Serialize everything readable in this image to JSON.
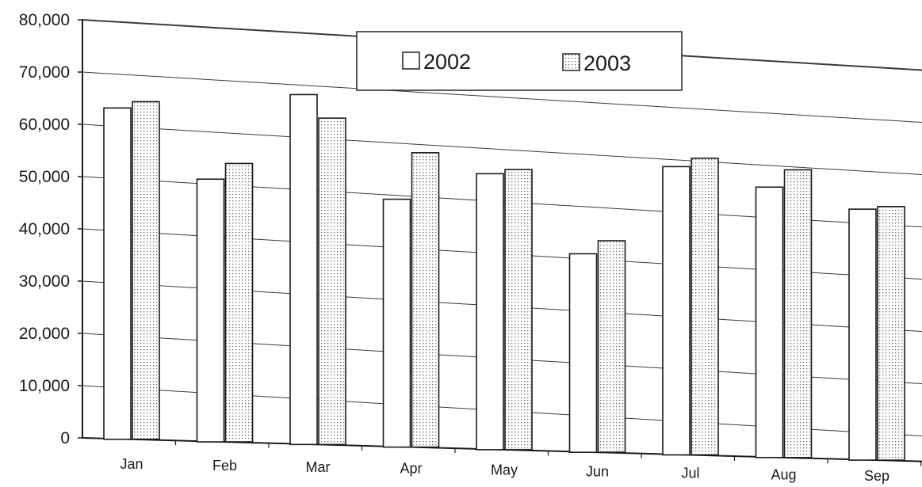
{
  "chart_data": {
    "type": "bar",
    "categories": [
      "Jan",
      "Feb",
      "Mar",
      "Apr",
      "May",
      "Jun",
      "Jul",
      "Aug",
      "Sep"
    ],
    "series": [
      {
        "name": "2002",
        "values": [
          63300,
          50000,
          66500,
          46800,
          52000,
          37000,
          54000,
          50400,
          46500
        ]
      },
      {
        "name": "2003",
        "values": [
          64500,
          53000,
          62000,
          55700,
          52800,
          39500,
          55600,
          53700,
          47000
        ]
      }
    ],
    "ylim": [
      0,
      80000
    ],
    "yticks": [
      "0",
      "10,000",
      "20,000",
      "30,000",
      "40,000",
      "50,000",
      "60,000",
      "70,000",
      "80,000"
    ],
    "grid": true,
    "legend_position": "top-center",
    "colors": {
      "series_2002": "#ffffff",
      "series_2003_pattern": "#666666",
      "line": "#1a1a1a",
      "grid": "#444444"
    }
  }
}
